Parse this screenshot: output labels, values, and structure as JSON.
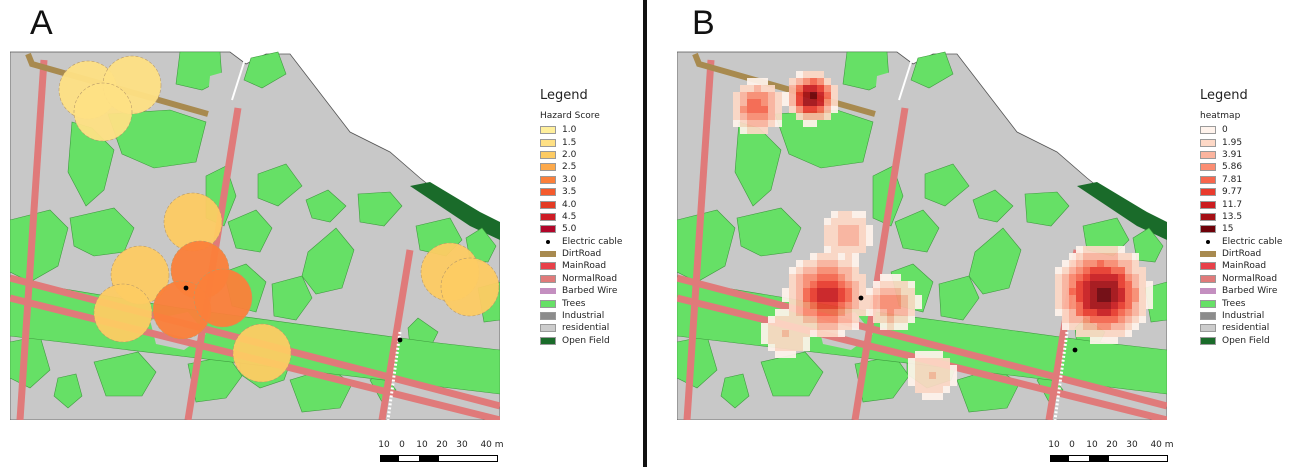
{
  "panels": [
    {
      "letter": "A",
      "legend": {
        "title": "Legend",
        "ramp_title": "Hazard Score",
        "ramp": [
          {
            "label": "1.0",
            "color": "#ffef9c"
          },
          {
            "label": "1.5",
            "color": "#fee084"
          },
          {
            "label": "2.0",
            "color": "#fdcb63"
          },
          {
            "label": "2.5",
            "color": "#fca94b"
          },
          {
            "label": "3.0",
            "color": "#fb7f3a"
          },
          {
            "label": "3.5",
            "color": "#f55a2c"
          },
          {
            "label": "4.0",
            "color": "#e33b24"
          },
          {
            "label": "4.5",
            "color": "#cd1c25"
          },
          {
            "label": "5.0",
            "color": "#b1062a"
          }
        ]
      }
    },
    {
      "letter": "B",
      "legend": {
        "title": "Legend",
        "ramp_title": "heatmap",
        "ramp": [
          {
            "label": "0",
            "color": "#fff3ec"
          },
          {
            "label": "1.95",
            "color": "#fdd8c6"
          },
          {
            "label": "3.91",
            "color": "#fcb49e"
          },
          {
            "label": "5.86",
            "color": "#fb8d72"
          },
          {
            "label": "7.81",
            "color": "#f7664d"
          },
          {
            "label": "9.77",
            "color": "#ea3b2d"
          },
          {
            "label": "11.7",
            "color": "#cb1c1f"
          },
          {
            "label": "13.5",
            "color": "#a50f15"
          },
          {
            "label": "15",
            "color": "#6e0109"
          }
        ]
      }
    }
  ],
  "layers": [
    {
      "label": "Electric cable",
      "type": "point",
      "color": "#000000"
    },
    {
      "label": "DirtRoad",
      "type": "line",
      "color": "#a88a4f"
    },
    {
      "label": "MainRoad",
      "type": "fill",
      "color": "#e8414a"
    },
    {
      "label": "NormalRoad",
      "type": "fill",
      "color": "#e07a7a"
    },
    {
      "label": "Barbed Wire",
      "type": "line",
      "color": "#c48fc0"
    },
    {
      "label": "Trees",
      "type": "fill",
      "color": "#66e066"
    },
    {
      "label": "Industrial",
      "type": "fill",
      "color": "#8c8c8c"
    },
    {
      "label": "residential",
      "type": "fill",
      "color": "#cccccc"
    },
    {
      "label": "Open Field",
      "type": "fill",
      "color": "#1a6b2a"
    }
  ],
  "scalebar": {
    "labels": [
      "10",
      "0",
      "10",
      "20",
      "30",
      "40 m"
    ]
  },
  "hazard_zones": [
    {
      "cx": 78,
      "cy": 40,
      "score": 1.5
    },
    {
      "cx": 122,
      "cy": 35,
      "score": 1.5
    },
    {
      "cx": 93,
      "cy": 62,
      "score": 1.5
    },
    {
      "cx": 183,
      "cy": 172,
      "score": 2.0
    },
    {
      "cx": 440,
      "cy": 222,
      "score": 2.0
    },
    {
      "cx": 460,
      "cy": 237,
      "score": 2.0
    },
    {
      "cx": 130,
      "cy": 225,
      "score": 2.0
    },
    {
      "cx": 113,
      "cy": 263,
      "score": 2.0
    },
    {
      "cx": 252,
      "cy": 303,
      "score": 2.0
    },
    {
      "cx": 190,
      "cy": 220,
      "score": 3.0
    },
    {
      "cx": 172,
      "cy": 260,
      "score": 3.0
    },
    {
      "cx": 213,
      "cy": 248,
      "score": 3.0
    }
  ],
  "heat_hotspots": [
    {
      "cx": 135,
      "cy": 47,
      "value": 15,
      "r": 30
    },
    {
      "cx": 80,
      "cy": 57,
      "value": 7.8,
      "r": 32
    },
    {
      "cx": 150,
      "cy": 245,
      "value": 11.7,
      "r": 48
    },
    {
      "cx": 170,
      "cy": 185,
      "value": 4,
      "r": 32
    },
    {
      "cx": 215,
      "cy": 253,
      "value": 6,
      "r": 32
    },
    {
      "cx": 110,
      "cy": 283,
      "value": 3,
      "r": 32
    },
    {
      "cx": 255,
      "cy": 325,
      "value": 3,
      "r": 32
    },
    {
      "cx": 425,
      "cy": 243,
      "value": 15,
      "r": 55
    }
  ]
}
